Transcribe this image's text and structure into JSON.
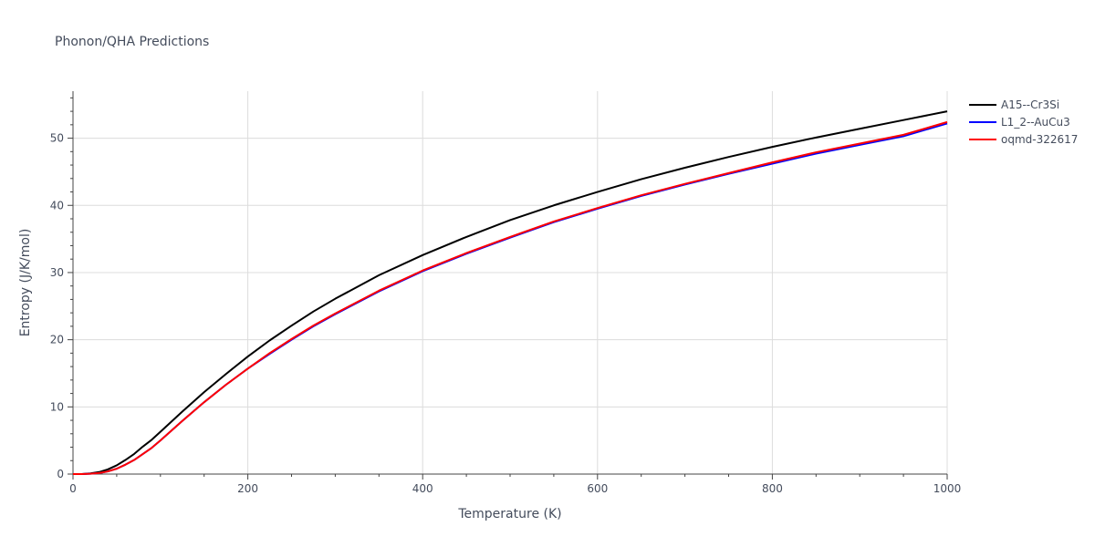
{
  "chart_data": {
    "type": "line",
    "title": "Phonon/QHA Predictions",
    "xlabel": "Temperature (K)",
    "ylabel": "Entropy (J/K/mol)",
    "xlim": [
      0,
      1000
    ],
    "ylim": [
      0,
      57
    ],
    "xticks": [
      0,
      200,
      400,
      600,
      800,
      1000
    ],
    "yticks": [
      0,
      10,
      20,
      30,
      40,
      50
    ],
    "grid": true,
    "legend_position": "top-right",
    "x": [
      0,
      10,
      20,
      30,
      40,
      50,
      60,
      70,
      80,
      90,
      100,
      125,
      150,
      175,
      200,
      225,
      250,
      275,
      300,
      350,
      400,
      450,
      500,
      550,
      600,
      650,
      700,
      750,
      800,
      850,
      900,
      950,
      1000
    ],
    "series": [
      {
        "name": "A15--Cr3Si",
        "color": "#000000",
        "values": [
          0,
          0.0,
          0.1,
          0.3,
          0.7,
          1.3,
          2.1,
          3.0,
          4.1,
          5.1,
          6.3,
          9.3,
          12.2,
          14.9,
          17.5,
          19.9,
          22.1,
          24.2,
          26.1,
          29.6,
          32.6,
          35.3,
          37.8,
          40.0,
          42.0,
          43.9,
          45.6,
          47.2,
          48.7,
          50.1,
          51.4,
          52.7,
          54.0
        ]
      },
      {
        "name": "L1_2--AuCu3",
        "color": "#0000ff",
        "values": [
          0,
          0.0,
          0.05,
          0.15,
          0.4,
          0.8,
          1.4,
          2.1,
          3.0,
          3.9,
          5.0,
          7.9,
          10.7,
          13.3,
          15.7,
          17.9,
          20.0,
          22.0,
          23.8,
          27.2,
          30.2,
          32.8,
          35.2,
          37.5,
          39.5,
          41.4,
          43.1,
          44.7,
          46.2,
          47.7,
          49.0,
          50.3,
          52.2
        ]
      },
      {
        "name": "oqmd-322617",
        "color": "#ff0000",
        "values": [
          0,
          0.0,
          0.05,
          0.15,
          0.4,
          0.8,
          1.4,
          2.1,
          3.0,
          3.9,
          5.0,
          7.9,
          10.7,
          13.3,
          15.7,
          18.0,
          20.1,
          22.1,
          23.9,
          27.3,
          30.3,
          32.9,
          35.3,
          37.6,
          39.6,
          41.5,
          43.2,
          44.8,
          46.4,
          47.9,
          49.2,
          50.5,
          52.4
        ]
      }
    ]
  }
}
